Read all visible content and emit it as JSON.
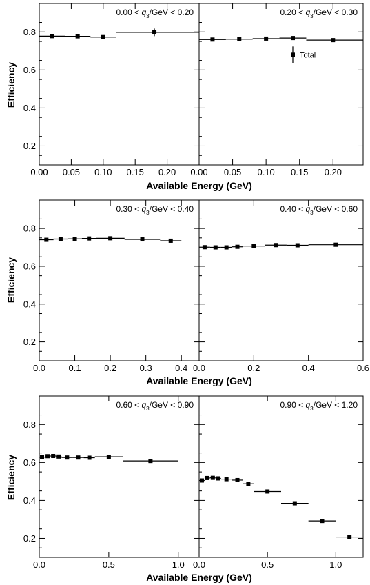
{
  "figure": {
    "row_xlabel": "Available Energy (GeV)",
    "ylabel": "Efficiency"
  },
  "chart_data": [
    {
      "type": "scatter",
      "panel": "q3 0.00-0.20",
      "cut_label": {
        "lo": "0.00 < ",
        "q": "q",
        "sub": "3",
        "hi": "/GeV < 0.20"
      },
      "xlim": [
        0,
        0.25
      ],
      "ylim": [
        0.1,
        0.95
      ],
      "xticks": [
        0.0,
        0.05,
        0.1,
        0.15,
        0.2
      ],
      "xtick_labels": [
        "0.00",
        "0.05",
        "0.10",
        "0.15",
        "0.20"
      ],
      "yticks": [
        0.2,
        0.4,
        0.6,
        0.8
      ],
      "ytick_labels": [
        "0.2",
        "0.4",
        "0.6",
        "0.8"
      ],
      "series": [
        {
          "points": [
            {
              "x": 0.02,
              "y": 0.778,
              "xlo": 0.0,
              "xhi": 0.04,
              "err": 0.003
            },
            {
              "x": 0.06,
              "y": 0.777,
              "xlo": 0.04,
              "xhi": 0.08,
              "err": 0.004
            },
            {
              "x": 0.1,
              "y": 0.773,
              "xlo": 0.08,
              "xhi": 0.12,
              "err": 0.008
            },
            {
              "x": 0.18,
              "y": 0.798,
              "xlo": 0.12,
              "xhi": 0.25,
              "err": 0.02
            }
          ]
        }
      ]
    },
    {
      "type": "scatter",
      "panel": "q3 0.20-0.30",
      "cut_label": {
        "lo": "0.20 < ",
        "q": "q",
        "sub": "3",
        "hi": "/GeV < 0.30"
      },
      "xlim": [
        0,
        0.245
      ],
      "ylim": [
        0.1,
        0.95
      ],
      "xticks": [
        0.0,
        0.05,
        0.1,
        0.15,
        0.2
      ],
      "xtick_labels": [
        "0.00",
        "0.05",
        "0.10",
        "0.15",
        "0.20"
      ],
      "yticks": [
        0.2,
        0.4,
        0.6,
        0.8
      ],
      "ytick_labels": [
        "",
        "",
        "",
        ""
      ],
      "legend": {
        "label": "Total"
      },
      "series": [
        {
          "points": [
            {
              "x": 0.02,
              "y": 0.76,
              "xlo": 0.0,
              "xhi": 0.04,
              "err": 0.003
            },
            {
              "x": 0.06,
              "y": 0.762,
              "xlo": 0.04,
              "xhi": 0.08,
              "err": 0.003
            },
            {
              "x": 0.1,
              "y": 0.765,
              "xlo": 0.08,
              "xhi": 0.12,
              "err": 0.004
            },
            {
              "x": 0.14,
              "y": 0.768,
              "xlo": 0.12,
              "xhi": 0.16,
              "err": 0.006
            },
            {
              "x": 0.2,
              "y": 0.757,
              "xlo": 0.16,
              "xhi": 0.245,
              "err": 0.006
            }
          ]
        }
      ]
    },
    {
      "type": "scatter",
      "panel": "q3 0.30-0.40",
      "cut_label": {
        "lo": "0.30 < ",
        "q": "q",
        "sub": "3",
        "hi": "/GeV < 0.40"
      },
      "xlim": [
        0,
        0.45
      ],
      "ylim": [
        0.1,
        0.95
      ],
      "xticks": [
        0.0,
        0.1,
        0.2,
        0.3,
        0.4
      ],
      "xtick_labels": [
        "0.0",
        "0.1",
        "0.2",
        "0.3",
        "0.4"
      ],
      "yticks": [
        0.2,
        0.4,
        0.6,
        0.8
      ],
      "ytick_labels": [
        "0.2",
        "0.4",
        "0.6",
        "0.8"
      ],
      "series": [
        {
          "points": [
            {
              "x": 0.02,
              "y": 0.74,
              "xlo": 0.0,
              "xhi": 0.04,
              "err": 0.003
            },
            {
              "x": 0.06,
              "y": 0.744,
              "xlo": 0.04,
              "xhi": 0.08,
              "err": 0.003
            },
            {
              "x": 0.1,
              "y": 0.745,
              "xlo": 0.08,
              "xhi": 0.12,
              "err": 0.003
            },
            {
              "x": 0.14,
              "y": 0.747,
              "xlo": 0.12,
              "xhi": 0.16,
              "err": 0.003
            },
            {
              "x": 0.2,
              "y": 0.748,
              "xlo": 0.16,
              "xhi": 0.24,
              "err": 0.003
            },
            {
              "x": 0.29,
              "y": 0.742,
              "xlo": 0.24,
              "xhi": 0.34,
              "err": 0.004
            },
            {
              "x": 0.37,
              "y": 0.735,
              "xlo": 0.34,
              "xhi": 0.4,
              "err": 0.01
            }
          ]
        }
      ]
    },
    {
      "type": "scatter",
      "panel": "q3 0.40-0.60",
      "cut_label": {
        "lo": "0.40 < ",
        "q": "q",
        "sub": "3",
        "hi": "/GeV < 0.60"
      },
      "xlim": [
        0,
        0.6
      ],
      "ylim": [
        0.1,
        0.95
      ],
      "xticks": [
        0.0,
        0.2,
        0.4,
        0.6
      ],
      "xtick_labels": [
        "0.0",
        "0.2",
        "0.4",
        "0.6"
      ],
      "yticks": [
        0.2,
        0.4,
        0.6,
        0.8
      ],
      "ytick_labels": [
        "",
        "",
        "",
        ""
      ],
      "series": [
        {
          "points": [
            {
              "x": 0.02,
              "y": 0.701,
              "xlo": 0.0,
              "xhi": 0.04,
              "err": 0.003
            },
            {
              "x": 0.06,
              "y": 0.7,
              "xlo": 0.04,
              "xhi": 0.08,
              "err": 0.003
            },
            {
              "x": 0.1,
              "y": 0.7,
              "xlo": 0.08,
              "xhi": 0.12,
              "err": 0.003
            },
            {
              "x": 0.14,
              "y": 0.703,
              "xlo": 0.12,
              "xhi": 0.16,
              "err": 0.003
            },
            {
              "x": 0.2,
              "y": 0.707,
              "xlo": 0.16,
              "xhi": 0.24,
              "err": 0.003
            },
            {
              "x": 0.28,
              "y": 0.712,
              "xlo": 0.24,
              "xhi": 0.32,
              "err": 0.003
            },
            {
              "x": 0.36,
              "y": 0.711,
              "xlo": 0.32,
              "xhi": 0.4,
              "err": 0.003
            },
            {
              "x": 0.5,
              "y": 0.714,
              "xlo": 0.4,
              "xhi": 0.6,
              "err": 0.004
            }
          ]
        }
      ]
    },
    {
      "type": "scatter",
      "panel": "q3 0.60-0.90",
      "cut_label": {
        "lo": "0.60 < ",
        "q": "q",
        "sub": "3",
        "hi": "/GeV < 0.90"
      },
      "xlim": [
        0,
        1.15
      ],
      "ylim": [
        0.1,
        0.95
      ],
      "xticks": [
        0.0,
        0.5,
        1.0
      ],
      "xtick_labels": [
        "0.0",
        "0.5",
        "1.0"
      ],
      "yticks": [
        0.2,
        0.4,
        0.6,
        0.8
      ],
      "ytick_labels": [
        "0.2",
        "0.4",
        "0.6",
        "0.8"
      ],
      "series": [
        {
          "points": [
            {
              "x": 0.02,
              "y": 0.628,
              "xlo": 0.0,
              "xhi": 0.04,
              "err": 0.003
            },
            {
              "x": 0.06,
              "y": 0.633,
              "xlo": 0.04,
              "xhi": 0.08,
              "err": 0.003
            },
            {
              "x": 0.1,
              "y": 0.634,
              "xlo": 0.08,
              "xhi": 0.12,
              "err": 0.003
            },
            {
              "x": 0.14,
              "y": 0.631,
              "xlo": 0.12,
              "xhi": 0.16,
              "err": 0.003
            },
            {
              "x": 0.2,
              "y": 0.626,
              "xlo": 0.16,
              "xhi": 0.24,
              "err": 0.003
            },
            {
              "x": 0.28,
              "y": 0.626,
              "xlo": 0.24,
              "xhi": 0.32,
              "err": 0.003
            },
            {
              "x": 0.36,
              "y": 0.625,
              "xlo": 0.32,
              "xhi": 0.4,
              "err": 0.003
            },
            {
              "x": 0.5,
              "y": 0.63,
              "xlo": 0.4,
              "xhi": 0.6,
              "err": 0.003
            },
            {
              "x": 0.8,
              "y": 0.608,
              "xlo": 0.6,
              "xhi": 1.0,
              "err": 0.004
            }
          ]
        }
      ]
    },
    {
      "type": "scatter",
      "panel": "q3 0.90-1.20",
      "cut_label": {
        "lo": "0.90 < ",
        "q": "q",
        "sub": "3",
        "hi": "/GeV < 1.20"
      },
      "xlim": [
        0,
        1.2
      ],
      "ylim": [
        0.1,
        0.95
      ],
      "xticks": [
        0.0,
        0.5,
        1.0
      ],
      "xtick_labels": [
        "0.0",
        "0.5",
        "1.0"
      ],
      "yticks": [
        0.2,
        0.4,
        0.6,
        0.8
      ],
      "ytick_labels": [
        "",
        "",
        "",
        ""
      ],
      "series": [
        {
          "points": [
            {
              "x": 0.02,
              "y": 0.505,
              "xlo": 0.0,
              "xhi": 0.04,
              "err": 0.004
            },
            {
              "x": 0.06,
              "y": 0.518,
              "xlo": 0.04,
              "xhi": 0.08,
              "err": 0.003
            },
            {
              "x": 0.1,
              "y": 0.519,
              "xlo": 0.08,
              "xhi": 0.12,
              "err": 0.003
            },
            {
              "x": 0.14,
              "y": 0.516,
              "xlo": 0.12,
              "xhi": 0.16,
              "err": 0.003
            },
            {
              "x": 0.2,
              "y": 0.512,
              "xlo": 0.16,
              "xhi": 0.24,
              "err": 0.003
            },
            {
              "x": 0.28,
              "y": 0.507,
              "xlo": 0.24,
              "xhi": 0.32,
              "err": 0.003
            },
            {
              "x": 0.36,
              "y": 0.488,
              "xlo": 0.32,
              "xhi": 0.4,
              "err": 0.003
            },
            {
              "x": 0.5,
              "y": 0.447,
              "xlo": 0.4,
              "xhi": 0.6,
              "err": 0.003
            },
            {
              "x": 0.7,
              "y": 0.385,
              "xlo": 0.6,
              "xhi": 0.8,
              "err": 0.004
            },
            {
              "x": 0.9,
              "y": 0.292,
              "xlo": 0.8,
              "xhi": 1.0,
              "err": 0.004
            },
            {
              "x": 1.1,
              "y": 0.207,
              "xlo": 1.0,
              "xhi": 1.2,
              "err": 0.005
            }
          ]
        }
      ]
    }
  ]
}
